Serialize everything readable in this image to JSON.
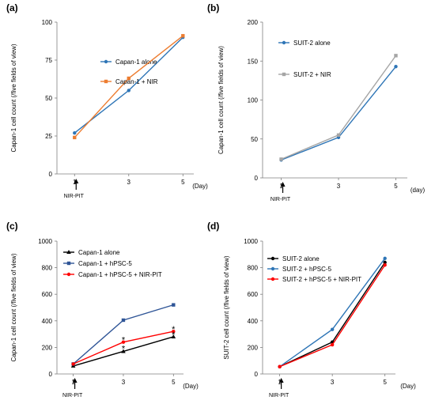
{
  "chart_data": [
    {
      "type": "line",
      "panel_label": "(a)",
      "ylabel": "Capan-1 cell count (/five fields of view)",
      "xunit": "(Day)",
      "x": [
        1,
        3,
        5
      ],
      "xticks": [
        "1",
        "3",
        "5"
      ],
      "ylim": [
        0,
        100
      ],
      "yticks": [
        0,
        25,
        50,
        75,
        100
      ],
      "ytick_labels": [
        "0",
        "25",
        "50",
        "75",
        "100"
      ],
      "arrow_label": "NIR-PIT",
      "legend_position": "top-left",
      "series": [
        {
          "name": "Capan-1 alone",
          "color": "#2e75b6",
          "marker": "circle",
          "values": [
            27,
            55,
            90
          ]
        },
        {
          "name": "Capan-1 + NIR",
          "color": "#ed7d31",
          "marker": "square",
          "values": [
            24,
            63,
            91
          ]
        }
      ],
      "annotations": []
    },
    {
      "type": "line",
      "panel_label": "(b)",
      "ylabel": "Capan-1 cell count (/five fields of view)",
      "xunit": "(day)",
      "x": [
        1,
        3,
        5
      ],
      "xticks": [
        "1",
        "3",
        "5"
      ],
      "ylim": [
        0,
        200
      ],
      "yticks": [
        0,
        50,
        100,
        150,
        200
      ],
      "ytick_labels": [
        "0",
        "50",
        "100",
        "150",
        "200"
      ],
      "arrow_label": "NIR-PIT",
      "legend_position": "top-left",
      "series": [
        {
          "name": "SUIT-2 alone",
          "color": "#2e75b6",
          "marker": "circle",
          "values": [
            23,
            52,
            143
          ]
        },
        {
          "name": "SUIT-2 + NIR",
          "color": "#a5a5a5",
          "marker": "square",
          "values": [
            24,
            55,
            157
          ]
        }
      ],
      "annotations": []
    },
    {
      "type": "line",
      "panel_label": "(c)",
      "ylabel": "Capan-1 cell count (/five fields of view)",
      "xunit": "(Day)",
      "x": [
        1,
        3,
        5
      ],
      "xticks": [
        "1",
        "3",
        "5"
      ],
      "ylim": [
        0,
        1000
      ],
      "yticks": [
        0,
        200,
        400,
        600,
        800,
        1000
      ],
      "ytick_labels": [
        "0",
        "200",
        "400",
        "600",
        "800",
        "1000"
      ],
      "arrow_label": "NIR-PIT",
      "legend_position": "top-left",
      "series": [
        {
          "name": "Capan-1 alone",
          "color": "#000000",
          "marker": "triangle",
          "values": [
            60,
            170,
            280
          ]
        },
        {
          "name": "Capan-1 + hPSC-5",
          "color": "#2f5597",
          "marker": "square",
          "values": [
            75,
            405,
            520
          ]
        },
        {
          "name": "Capan-1 + hPSC-5 + NIR-PIT",
          "color": "#ff0000",
          "marker": "circle",
          "values": [
            75,
            240,
            320
          ]
        }
      ],
      "annotations": [
        {
          "text": "*",
          "x": 3,
          "y": 200
        },
        {
          "text": "*",
          "x": 3,
          "y": 265
        },
        {
          "text": "*",
          "x": 5,
          "y": 305
        },
        {
          "text": "*",
          "x": 5,
          "y": 345
        }
      ]
    },
    {
      "type": "line",
      "panel_label": "(d)",
      "ylabel": "SUIT-2 cell count (/five fields of view)",
      "xunit": "(Day)",
      "x": [
        1,
        3,
        5
      ],
      "xticks": [
        "1",
        "3",
        "5"
      ],
      "ylim": [
        0,
        1000
      ],
      "yticks": [
        0,
        200,
        400,
        600,
        800,
        1000
      ],
      "ytick_labels": [
        "0",
        "200",
        "400",
        "600",
        "800",
        "1000"
      ],
      "arrow_label": "NIR-PIT",
      "legend_position": "top-left",
      "series": [
        {
          "name": "SUIT-2 alone",
          "color": "#000000",
          "marker": "circle",
          "values": [
            55,
            240,
            840
          ]
        },
        {
          "name": "SUIT-2 + hPSC-5",
          "color": "#2e75b6",
          "marker": "circle",
          "values": [
            55,
            335,
            870
          ]
        },
        {
          "name": "SUIT-2 + hPSC-5 + NIR-PIT",
          "color": "#ff0000",
          "marker": "circle",
          "values": [
            55,
            220,
            820
          ]
        }
      ],
      "annotations": []
    }
  ]
}
